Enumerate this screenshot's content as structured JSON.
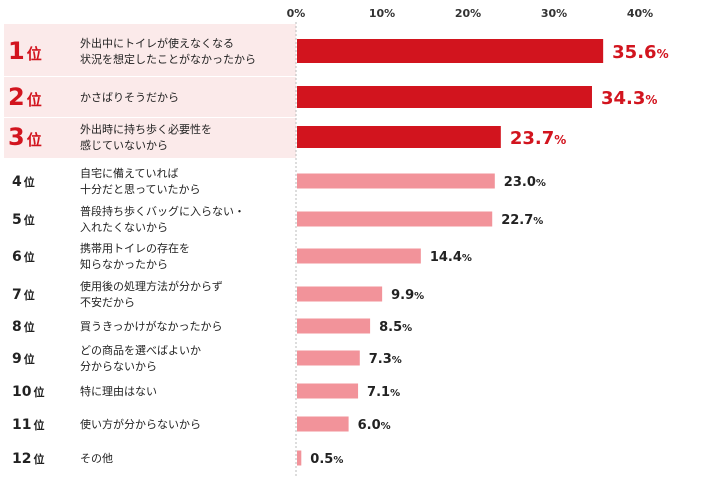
{
  "chart_data": {
    "type": "bar",
    "orientation": "horizontal",
    "xlim": [
      0,
      40
    ],
    "x_ticks": [
      "0%",
      "10%",
      "20%",
      "30%",
      "40%"
    ],
    "rank_suffix": "位",
    "unit": "%",
    "highlight_color": "#d2141e",
    "normal_color": "#f2939a",
    "highlight_band_color": "#fbeaea",
    "rows": [
      {
        "rank": "1",
        "reason": [
          "外出中にトイレが使えなくなる",
          "状況を想定したことがなかったから"
        ],
        "value": 35.6,
        "highlight": true
      },
      {
        "rank": "2",
        "reason": [
          "かさばりそうだから"
        ],
        "value": 34.3,
        "highlight": true
      },
      {
        "rank": "3",
        "reason": [
          "外出時に持ち歩く必要性を",
          "感じていないから"
        ],
        "value": 23.7,
        "highlight": true
      },
      {
        "rank": "4",
        "reason": [
          "自宅に備えていれば",
          "十分だと思っていたから"
        ],
        "value": 23.0,
        "highlight": false
      },
      {
        "rank": "5",
        "reason": [
          "普段持ち歩くバッグに入らない・",
          "入れたくないから"
        ],
        "value": 22.7,
        "highlight": false
      },
      {
        "rank": "6",
        "reason": [
          "携帯用トイレの存在を",
          "知らなかったから"
        ],
        "value": 14.4,
        "highlight": false
      },
      {
        "rank": "7",
        "reason": [
          "使用後の処理方法が分からず",
          "不安だから"
        ],
        "value": 9.9,
        "highlight": false
      },
      {
        "rank": "8",
        "reason": [
          "買うきっかけがなかったから"
        ],
        "value": 8.5,
        "highlight": false
      },
      {
        "rank": "9",
        "reason": [
          "どの商品を選べばよいか",
          "分からないから"
        ],
        "value": 7.3,
        "highlight": false
      },
      {
        "rank": "10",
        "reason": [
          "特に理由はない"
        ],
        "value": 7.1,
        "highlight": false
      },
      {
        "rank": "11",
        "reason": [
          "使い方が分からないから"
        ],
        "value": 6.0,
        "highlight": false
      },
      {
        "rank": "12",
        "reason": [
          "その他"
        ],
        "value": 0.5,
        "highlight": false
      }
    ]
  }
}
